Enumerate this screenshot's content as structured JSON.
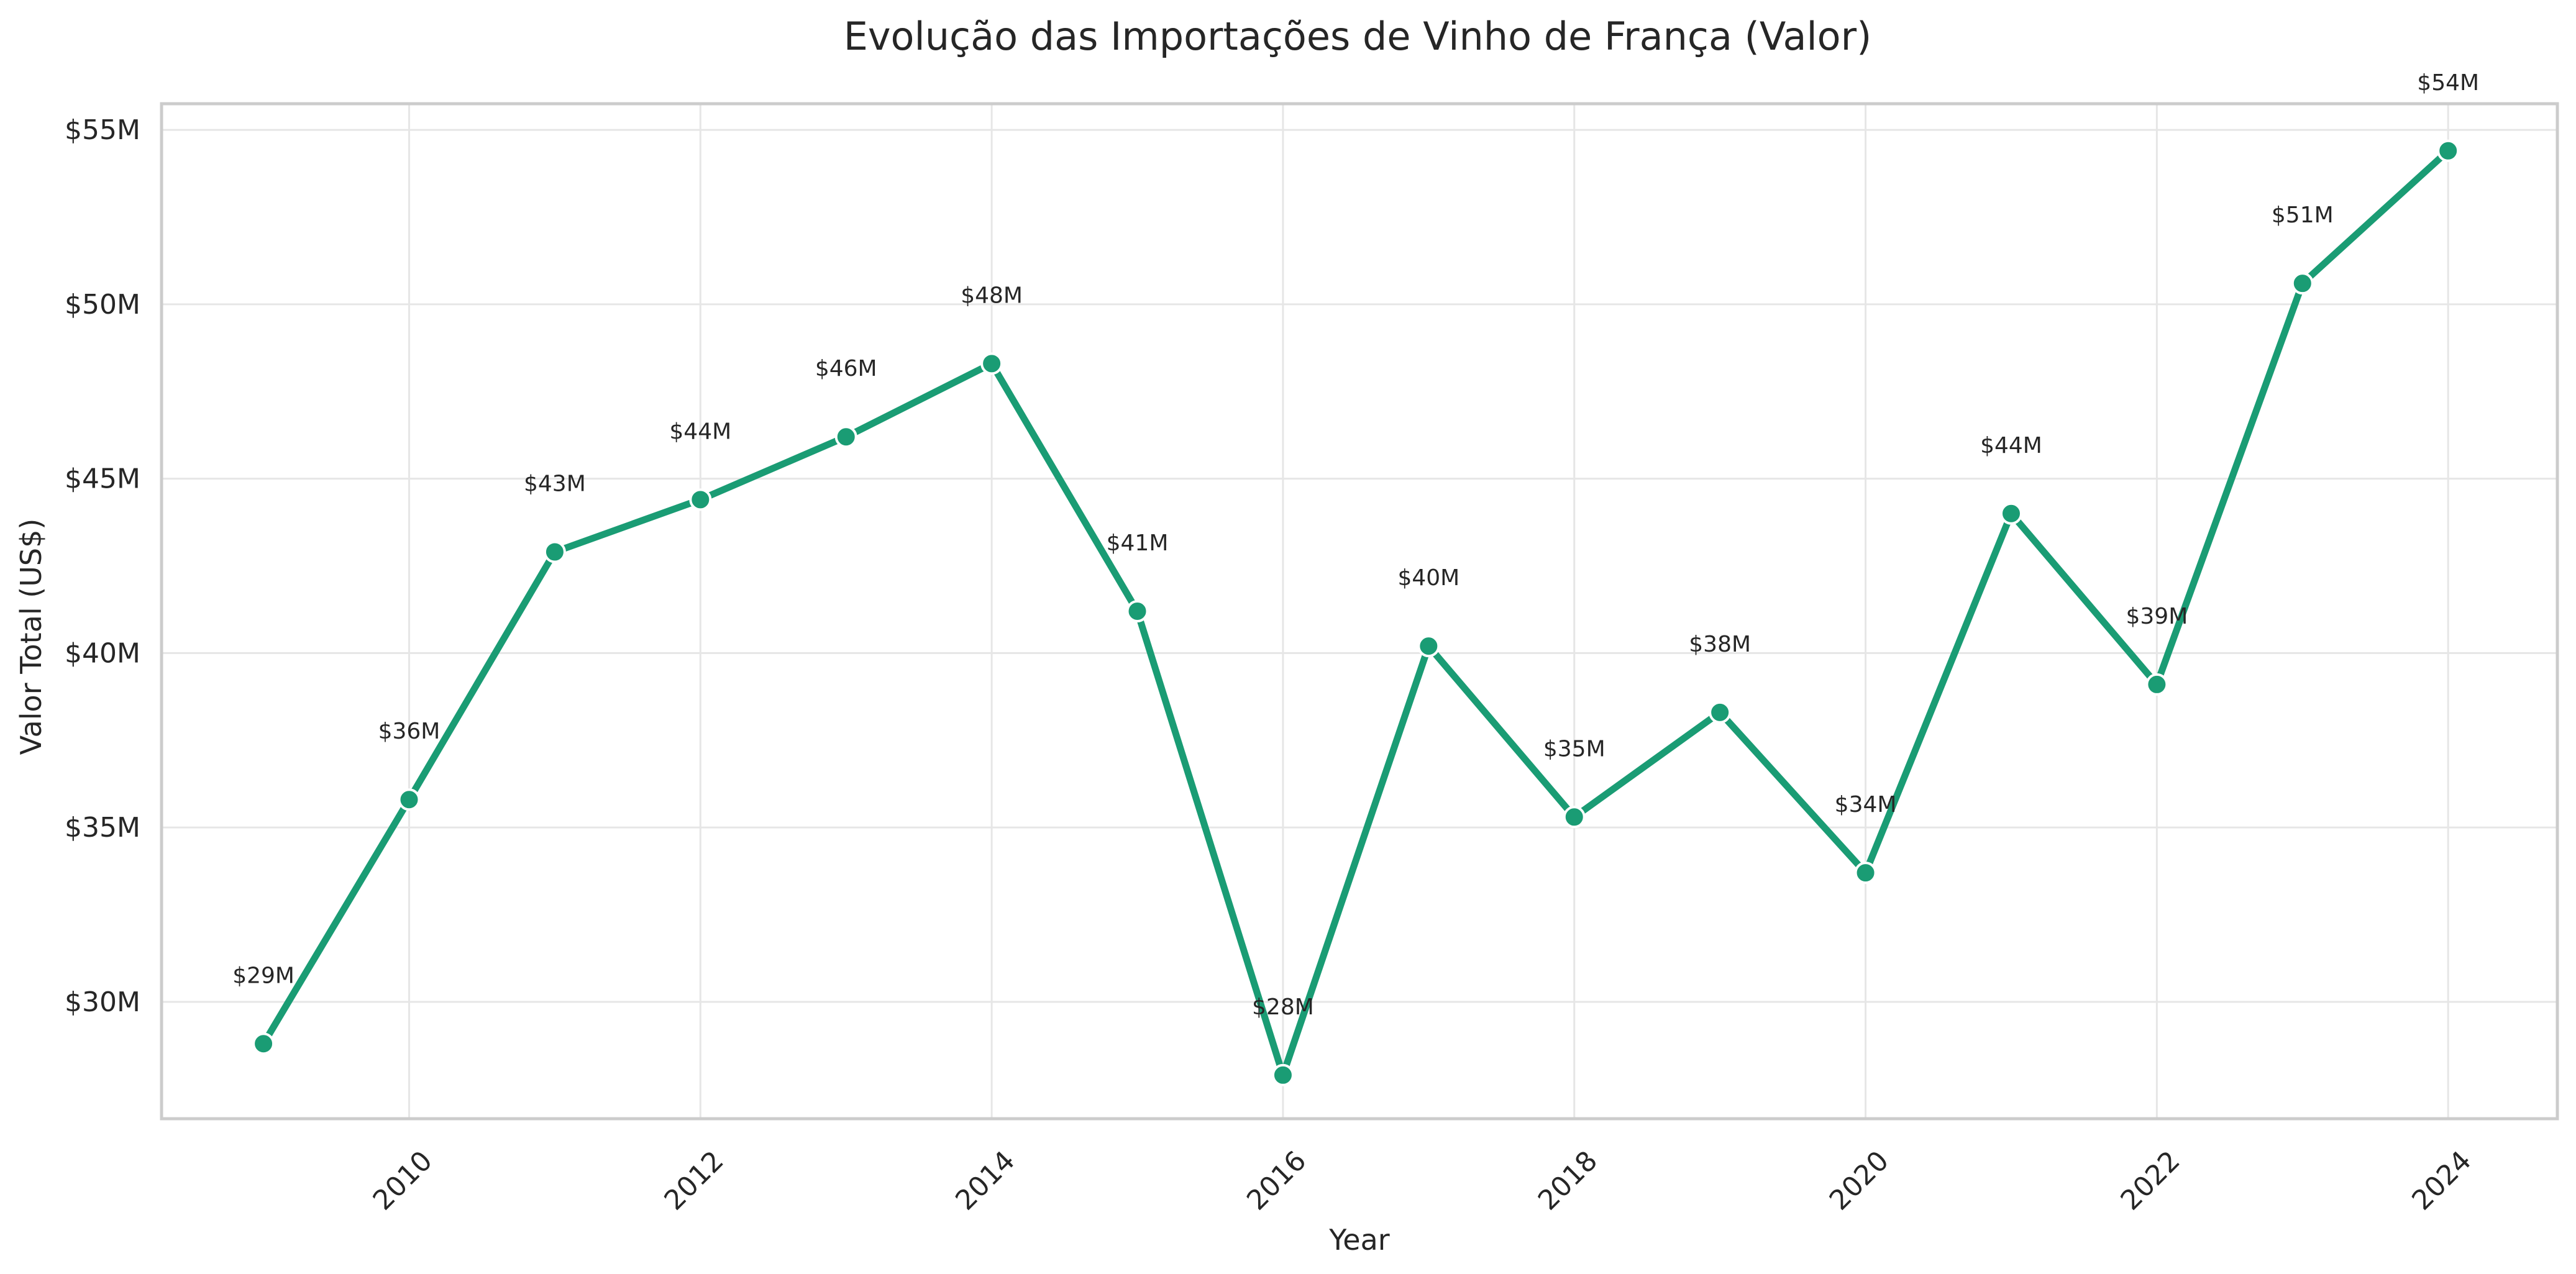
{
  "chart_data": {
    "type": "line",
    "title": "Evolução das Importações de Vinho de França (Valor)",
    "xlabel": "Year",
    "ylabel": "Valor Total (US$)",
    "x": [
      2009,
      2010,
      2011,
      2012,
      2013,
      2014,
      2015,
      2016,
      2017,
      2018,
      2019,
      2020,
      2021,
      2022,
      2023,
      2024
    ],
    "series": [
      {
        "values": [
          28.8,
          35.8,
          42.9,
          44.4,
          46.2,
          48.3,
          41.2,
          27.9,
          40.2,
          35.3,
          38.3,
          33.7,
          44.0,
          39.1,
          50.6,
          54.4
        ],
        "labels": [
          "$29M",
          "$36M",
          "$43M",
          "$44M",
          "$46M",
          "$48M",
          "$41M",
          "$28M",
          "$40M",
          "$35M",
          "$38M",
          "$34M",
          "$44M",
          "$39M",
          "$51M",
          "$54M"
        ],
        "color": "#1a9c74"
      }
    ],
    "xlim": [
      2008.3,
      2024.75
    ],
    "ylim": [
      26.65,
      55.75
    ],
    "xticks": [
      2010,
      2012,
      2014,
      2016,
      2018,
      2020,
      2022,
      2024
    ],
    "yticks": [
      30,
      35,
      40,
      45,
      50,
      55
    ],
    "ytick_labels": [
      "$30M",
      "$35M",
      "$40M",
      "$45M",
      "$50M",
      "$55M"
    ],
    "grid": true,
    "legend": "none"
  }
}
